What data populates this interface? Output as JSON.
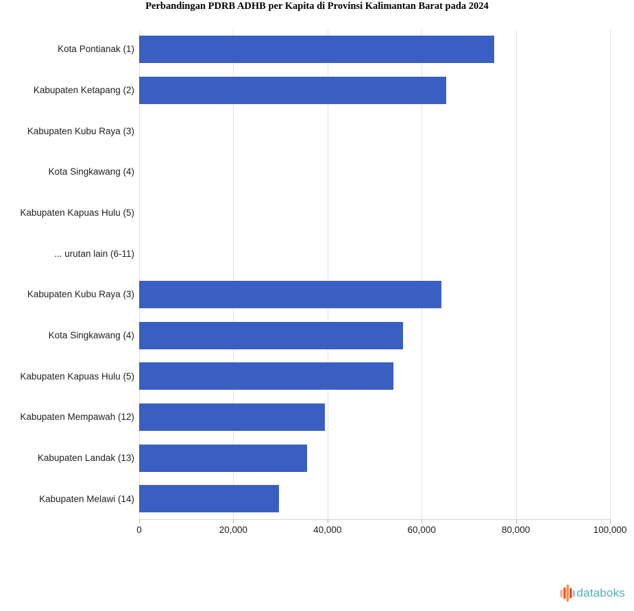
{
  "title": "Perbandingan PDRB ADHB per Kapita di Provinsi Kalimantan Barat pada 2024",
  "chart_data": {
    "type": "bar",
    "orientation": "horizontal",
    "title": "Perbandingan PDRB ADHB per Kapita di Provinsi Kalimantan Barat pada 2024",
    "categories": [
      "Kota Pontianak (1)",
      "Kabupaten Ketapang (2)",
      "Kabupaten Kubu Raya (3)",
      "Kota Singkawang (4)",
      "Kabupaten Kapuas Hulu (5)",
      "... urutan lain (6-11)",
      "Kabupaten Kubu Raya (3)",
      "Kota Singkawang (4)",
      "Kabupaten Kapuas Hulu (5)",
      "Kabupaten Mempawah (12)",
      "Kabupaten Landak (13)",
      "Kabupaten Melawi (14)"
    ],
    "values": [
      75400,
      65200,
      null,
      null,
      null,
      null,
      64200,
      56000,
      54000,
      39400,
      35700,
      29700
    ],
    "bar_color": "#3A5FC2",
    "xlim": [
      0,
      100000
    ],
    "x_ticks": [
      0,
      20000,
      40000,
      60000,
      80000,
      100000
    ],
    "x_tick_labels": [
      "0",
      "20,000",
      "40,000",
      "60,000",
      "80,000",
      "100,000"
    ],
    "grid": true,
    "legend": "none",
    "xlabel": "",
    "ylabel": ""
  },
  "branding": {
    "logo_text": "databoks",
    "logo_text_color": "#52AEA9",
    "logo_icon_colors": [
      "#F4A58A",
      "#EE5A36",
      "#F5913E",
      "#E8452F",
      "#8ED0CD"
    ]
  }
}
